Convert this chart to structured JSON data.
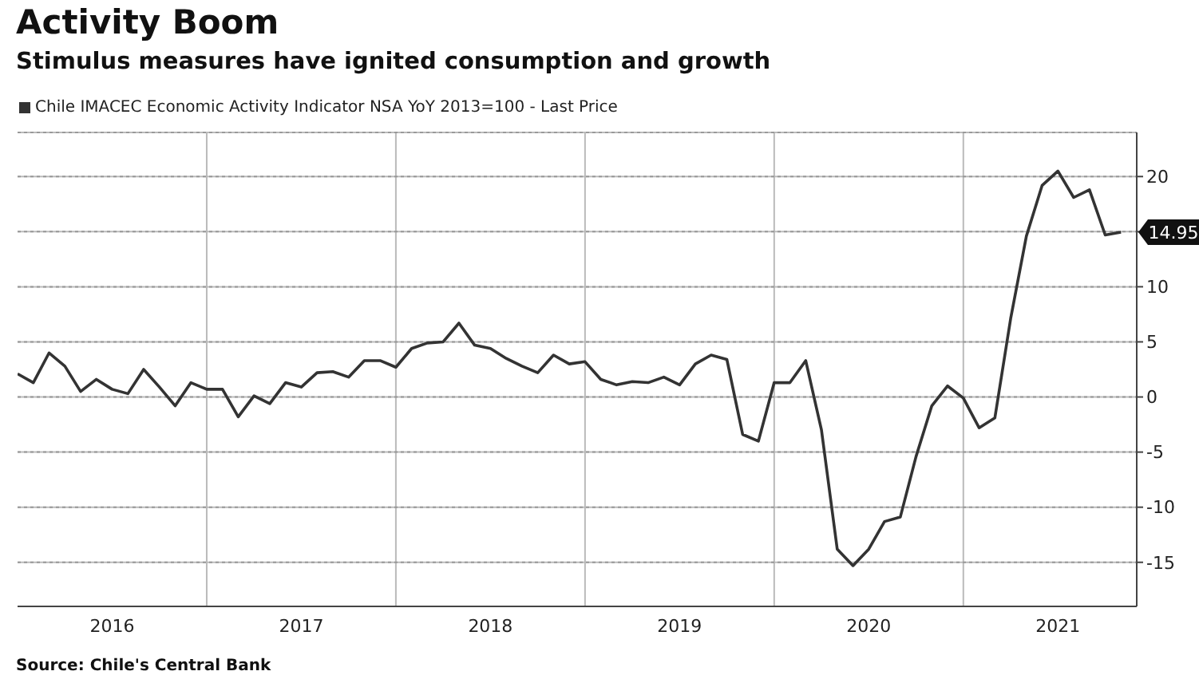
{
  "chart_data": {
    "type": "line",
    "title": "Activity Boom",
    "subtitle": "Stimulus measures have ignited consumption and growth",
    "x": [
      "2016-01",
      "2016-02",
      "2016-03",
      "2016-04",
      "2016-05",
      "2016-06",
      "2016-07",
      "2016-08",
      "2016-09",
      "2016-10",
      "2016-11",
      "2016-12",
      "2017-01",
      "2017-02",
      "2017-03",
      "2017-04",
      "2017-05",
      "2017-06",
      "2017-07",
      "2017-08",
      "2017-09",
      "2017-10",
      "2017-11",
      "2017-12",
      "2018-01",
      "2018-02",
      "2018-03",
      "2018-04",
      "2018-05",
      "2018-06",
      "2018-07",
      "2018-08",
      "2018-09",
      "2018-10",
      "2018-11",
      "2018-12",
      "2019-01",
      "2019-02",
      "2019-03",
      "2019-04",
      "2019-05",
      "2019-06",
      "2019-07",
      "2019-08",
      "2019-09",
      "2019-10",
      "2019-11",
      "2019-12",
      "2020-01",
      "2020-02",
      "2020-03",
      "2020-04",
      "2020-05",
      "2020-06",
      "2020-07",
      "2020-08",
      "2020-09",
      "2020-10",
      "2020-11",
      "2020-12",
      "2021-01",
      "2021-02",
      "2021-03",
      "2021-04",
      "2021-05",
      "2021-06",
      "2021-07",
      "2021-08",
      "2021-09",
      "2021-10",
      "2021-11"
    ],
    "series": [
      {
        "name": "Chile IMACEC Economic Activity Indicator NSA YoY 2013=100 - Last Price",
        "color": "#333333",
        "values": [
          2.1,
          1.3,
          4.0,
          2.8,
          0.5,
          1.6,
          0.7,
          0.3,
          2.5,
          0.9,
          -0.8,
          1.3,
          0.7,
          0.7,
          -1.8,
          0.1,
          -0.6,
          1.3,
          0.9,
          2.2,
          2.3,
          1.8,
          3.3,
          3.3,
          2.7,
          4.4,
          4.9,
          5.0,
          6.7,
          4.7,
          4.4,
          3.5,
          2.8,
          2.2,
          3.8,
          3.0,
          3.2,
          1.6,
          1.1,
          1.4,
          1.3,
          1.8,
          1.1,
          3.0,
          3.8,
          3.4,
          -3.4,
          -4.0,
          1.3,
          1.3,
          3.3,
          -3.0,
          -13.8,
          -15.3,
          -13.8,
          -11.3,
          -10.9,
          -5.4,
          -0.8,
          1.0,
          -0.1,
          -2.8,
          -1.9,
          7.1,
          14.6,
          19.2,
          20.5,
          18.1,
          18.8,
          14.7,
          14.95
        ]
      }
    ],
    "xlim": [
      "2016-01",
      "2021-12"
    ],
    "xticks": [
      {
        "value": "2016-07",
        "label": "2016"
      },
      {
        "value": "2017-01",
        "label": null
      },
      {
        "value": "2017-07",
        "label": "2017"
      },
      {
        "value": "2018-01",
        "label": null
      },
      {
        "value": "2018-07",
        "label": "2018"
      },
      {
        "value": "2019-01",
        "label": null
      },
      {
        "value": "2019-07",
        "label": "2019"
      },
      {
        "value": "2020-01",
        "label": null
      },
      {
        "value": "2020-07",
        "label": "2020"
      },
      {
        "value": "2021-01",
        "label": null
      },
      {
        "value": "2021-07",
        "label": "2021"
      }
    ],
    "ylim": [
      -19,
      24
    ],
    "yticks": [
      -15,
      -10,
      -5,
      0,
      5,
      10,
      {
        "value": 15,
        "label": null
      },
      20
    ],
    "grid": true,
    "legend": "top left",
    "marker": "none",
    "line_style": "solid",
    "annotations": [
      {
        "text": "14.95",
        "x": "2021-11",
        "y": 14.95
      },
      "Source: Chile's Central Bank"
    ]
  }
}
